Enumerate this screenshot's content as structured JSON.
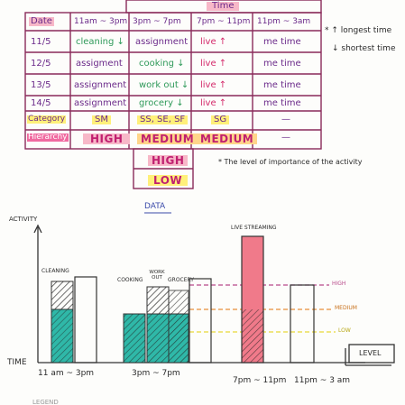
{
  "table": {
    "title": "Time",
    "header_date": "Date",
    "time_slots": [
      "11am ~ 3pm",
      "3pm ~ 7pm",
      "7pm ~ 11pm",
      "11pm ~ 3am"
    ],
    "rows": [
      {
        "date": "11/5",
        "cells": [
          "cleaning ↓",
          "assignment",
          "live ↑",
          "me time"
        ]
      },
      {
        "date": "12/5",
        "cells": [
          "assigment",
          "cooking ↓",
          "live ↑",
          "me time"
        ]
      },
      {
        "date": "13/5",
        "cells": [
          "assignment",
          "work out ↓",
          "live ↑",
          "me time"
        ]
      },
      {
        "date": "14/5",
        "cells": [
          "assignment",
          "grocery ↓",
          "live ↑",
          "me time"
        ]
      }
    ],
    "category_label": "Category",
    "categories": [
      "SM",
      "SS, SE, SF",
      "SG",
      "—"
    ],
    "hierarchy_label": "Hierarchy",
    "hierarchy": [
      "HIGH",
      "MEDIUM",
      "MEDIUM",
      "—"
    ],
    "hierarchy_legend": [
      "MEDIUM",
      "HIGH",
      "LOW"
    ]
  },
  "notes": {
    "longest": "longest time",
    "shortest": "shortest time",
    "importance": "The level of importance of the activity"
  },
  "chart_data": {
    "type": "bar",
    "title": "DATA",
    "ylabel": "ACTIVITY",
    "xlabel": "TIME",
    "categories": [
      "11 am ~ 3pm",
      "3pm ~ 7pm",
      "7pm ~ 11pm",
      "11pm ~ 3 am"
    ],
    "bar_labels": [
      "CLEANING",
      "COOKING",
      "WORK OUT",
      "GROCERY",
      "LIVE STREAMING"
    ],
    "levels": [
      "HIGH",
      "MEDIUM",
      "LOW"
    ],
    "legend": "LEVEL",
    "colors": {
      "teal": "#2fb8a8",
      "pink": "#f07a8a",
      "high": "#b84a8a",
      "medium": "#e8903a",
      "low": "#e8d838"
    }
  },
  "footer": {
    "partial_text": "LEGEND"
  }
}
